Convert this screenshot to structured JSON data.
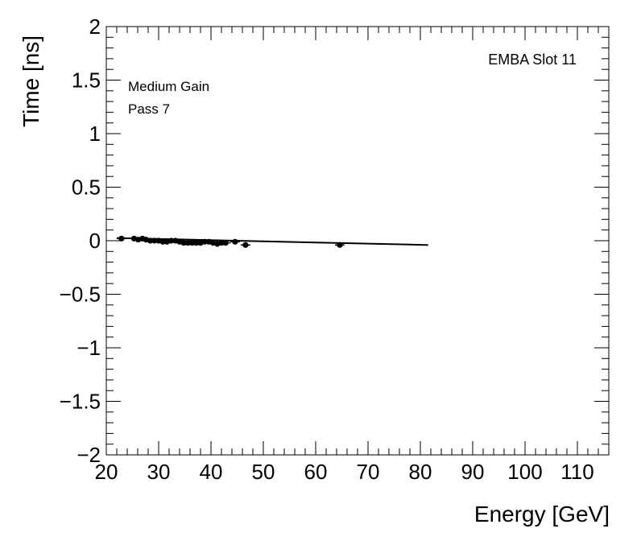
{
  "chart_data": {
    "type": "scatter",
    "xlabel": "Energy [GeV]",
    "ylabel": "Time [ns]",
    "xlim": [
      20,
      116
    ],
    "ylim": [
      -2,
      2
    ],
    "x_ticks": [
      20,
      30,
      40,
      50,
      60,
      70,
      80,
      90,
      100,
      110
    ],
    "x_tick_labels": [
      "20",
      "30",
      "40",
      "50",
      "60",
      "70",
      "80",
      "90",
      "100",
      "110"
    ],
    "y_ticks": [
      -2,
      -1.5,
      -1,
      -0.5,
      0,
      0.5,
      1,
      1.5,
      2
    ],
    "y_tick_labels": [
      "−2",
      "−1.5",
      "−1",
      "−0.5",
      "0",
      "0.5",
      "1",
      "1.5",
      "2"
    ],
    "annotations": {
      "top_right": "EMBA Slot 11",
      "line1": "Medium Gain",
      "line2": "Pass 7"
    },
    "grid": false,
    "points": [
      {
        "x": 22.9,
        "y": 0.02
      },
      {
        "x": 25.3,
        "y": 0.02
      },
      {
        "x": 26.1,
        "y": 0.01
      },
      {
        "x": 26.9,
        "y": 0.02
      },
      {
        "x": 27.6,
        "y": 0.01
      },
      {
        "x": 28.4,
        "y": 0.0
      },
      {
        "x": 29.2,
        "y": 0.0
      },
      {
        "x": 30.0,
        "y": 0.0
      },
      {
        "x": 30.8,
        "y": -0.01
      },
      {
        "x": 31.6,
        "y": -0.01
      },
      {
        "x": 32.4,
        "y": 0.0
      },
      {
        "x": 33.2,
        "y": 0.0
      },
      {
        "x": 34.0,
        "y": -0.01
      },
      {
        "x": 34.8,
        "y": -0.02
      },
      {
        "x": 35.6,
        "y": -0.02
      },
      {
        "x": 36.4,
        "y": -0.02
      },
      {
        "x": 37.2,
        "y": -0.02
      },
      {
        "x": 38.0,
        "y": -0.02
      },
      {
        "x": 38.8,
        "y": -0.01
      },
      {
        "x": 39.6,
        "y": -0.01
      },
      {
        "x": 40.4,
        "y": -0.02
      },
      {
        "x": 41.2,
        "y": -0.03
      },
      {
        "x": 42.0,
        "y": -0.02
      },
      {
        "x": 42.8,
        "y": -0.02
      },
      {
        "x": 44.6,
        "y": -0.01
      },
      {
        "x": 46.6,
        "y": -0.04
      },
      {
        "x": 64.6,
        "y": -0.04
      }
    ],
    "fit_line": {
      "x": [
        22.0,
        81.5
      ],
      "y": [
        0.025,
        -0.04
      ]
    },
    "marker_color": "#000000"
  }
}
